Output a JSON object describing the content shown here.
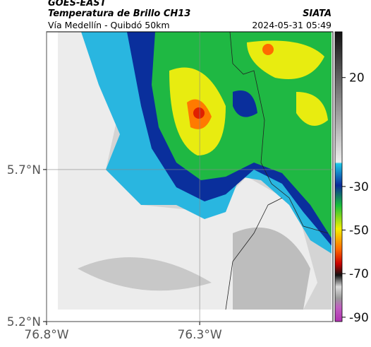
{
  "header": {
    "title": "GOES-EAST",
    "subtitle": "Temperatura de Brillo CH13",
    "source": "SIATA",
    "route": "Vía Medellín - Quibdó 50km",
    "timestamp": "2024-05-31 05:49"
  },
  "map": {
    "xlim": [
      -76.8,
      -75.865
    ],
    "ylim": [
      5.2,
      6.153
    ],
    "xticks": [
      {
        "value": -76.8,
        "label": "76.8°W"
      },
      {
        "value": -76.3,
        "label": "76.3°W"
      }
    ],
    "yticks": [
      {
        "value": 5.7,
        "label": "5.7°N"
      },
      {
        "value": 5.2,
        "label": "5.2°N"
      }
    ],
    "grid": true
  },
  "colorbar": {
    "lim": [
      -92,
      41
    ],
    "ticks": [
      20,
      -30,
      -50,
      -70,
      -90
    ]
  }
}
